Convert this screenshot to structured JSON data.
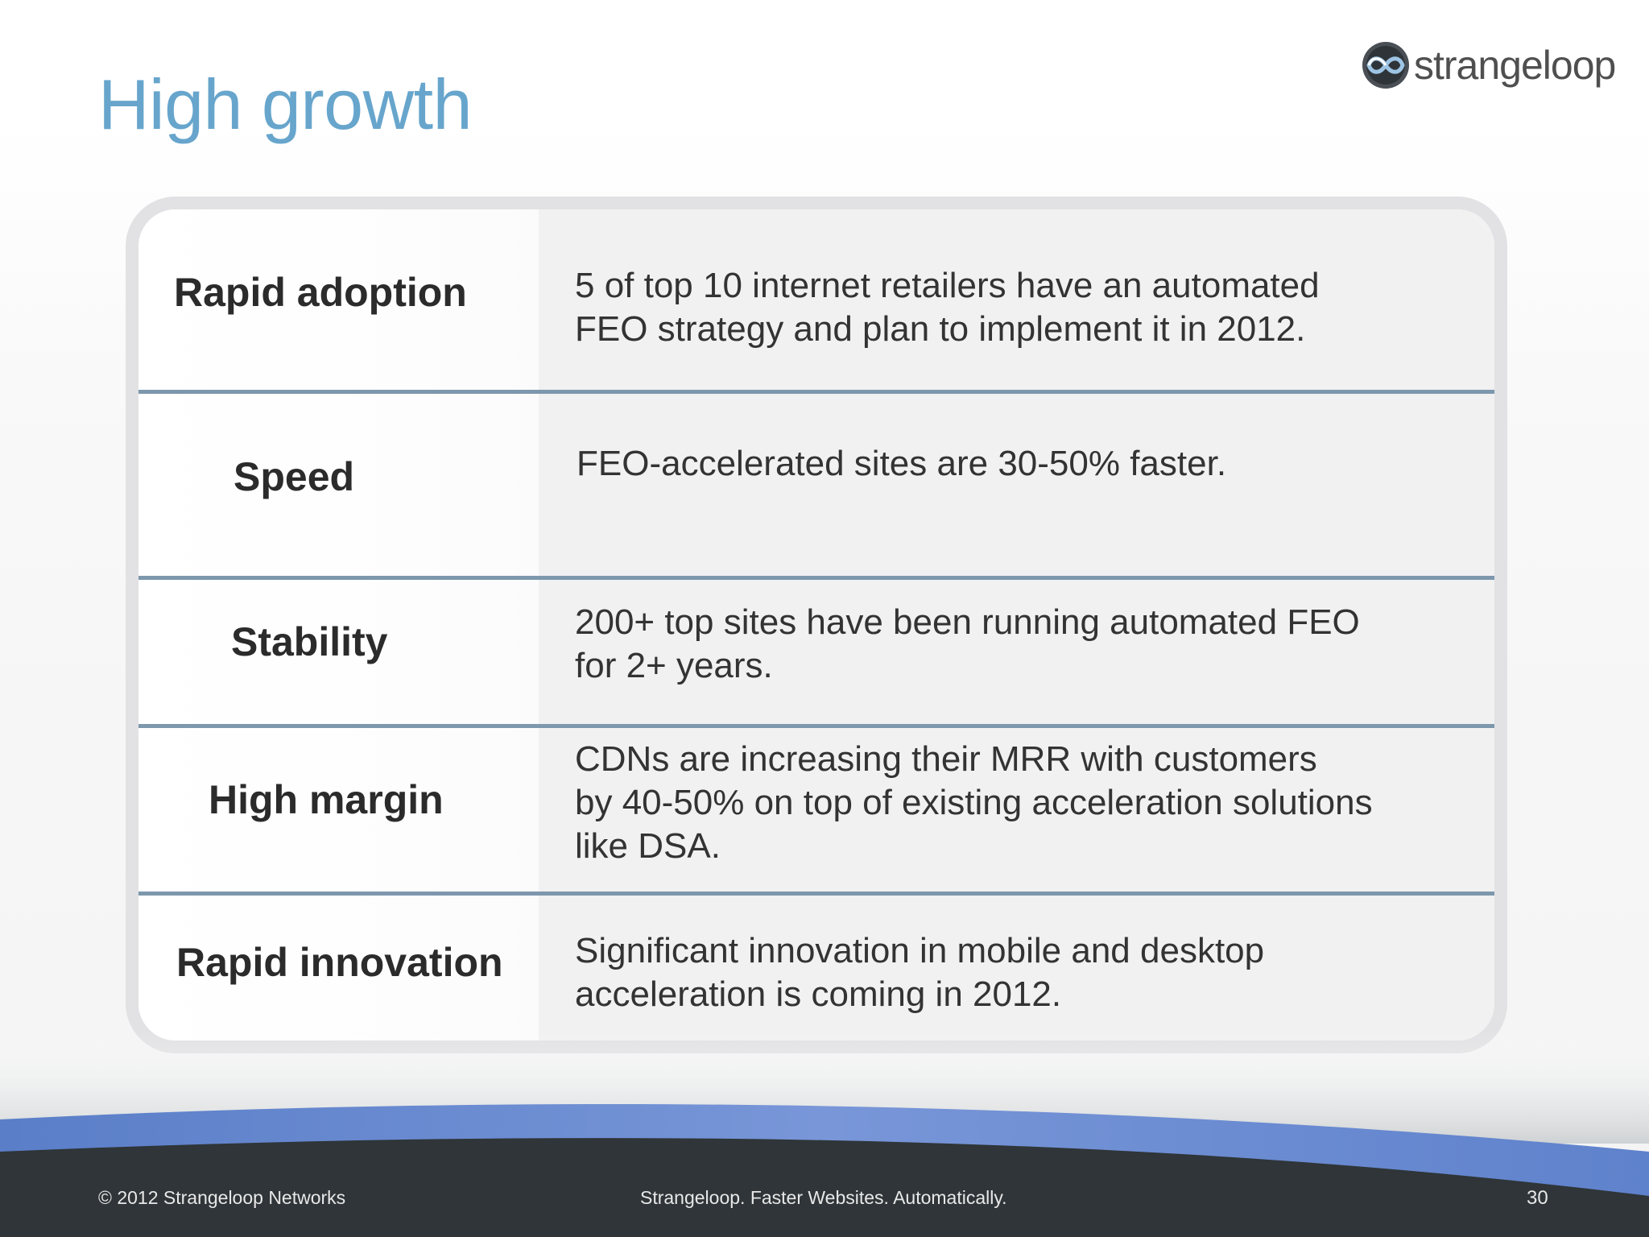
{
  "slide": {
    "title": "High growth",
    "logo_text": "strangeloop",
    "logo_icon": "infinity-loop-icon",
    "colors": {
      "title": "#67a5cc",
      "divider": "#7d97ad",
      "footer_band": "#2f3538",
      "footer_accent": "#6f8fd4"
    }
  },
  "rows": [
    {
      "label": "Rapid adoption",
      "text": "5 of top 10 internet retailers have an automated\nFEO strategy and plan to implement it in 2012."
    },
    {
      "label": "Speed",
      "text": "FEO-accelerated sites are 30-50% faster."
    },
    {
      "label": "Stability",
      "text": "200+ top sites have been running automated FEO\nfor 2+ years."
    },
    {
      "label": "High margin",
      "text": "CDNs are increasing their MRR with customers\nby 40-50% on top of existing acceleration solutions\nlike DSA."
    },
    {
      "label": "Rapid innovation",
      "text": "Significant innovation in mobile and desktop\nacceleration is coming in 2012."
    }
  ],
  "footer": {
    "copyright": "© 2012 Strangeloop Networks",
    "tagline": "Strangeloop. Faster Websites. Automatically.",
    "page_number": "30"
  }
}
